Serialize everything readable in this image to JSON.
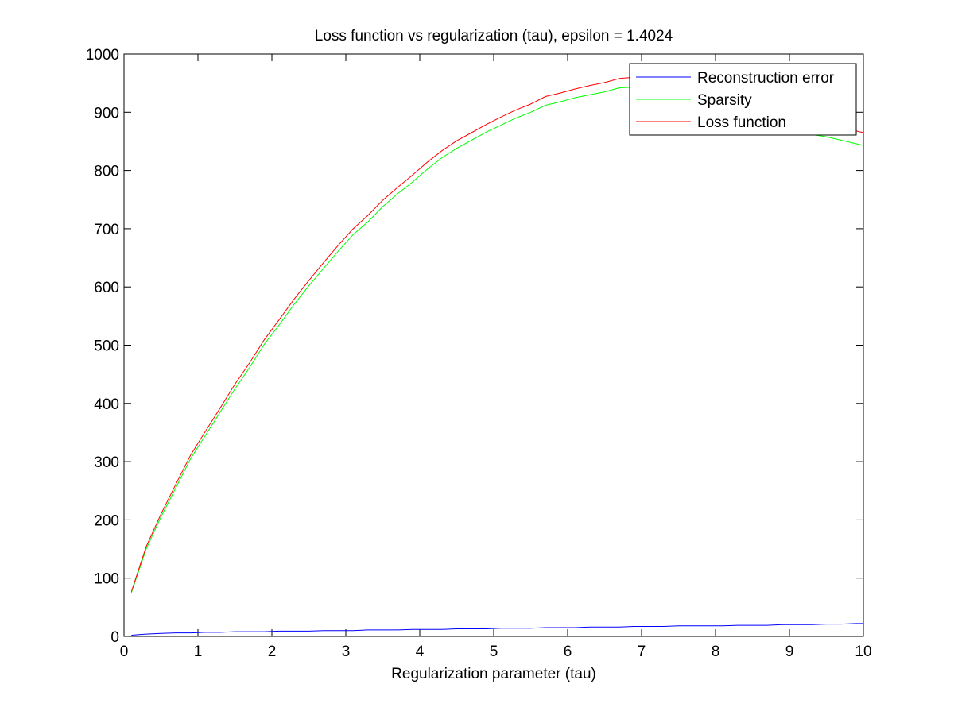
{
  "chart_data": {
    "type": "line",
    "title": "Loss function vs regularization (tau), epsilon = 1.4024",
    "xlabel": "Regularization parameter (tau)",
    "ylabel": "",
    "xlim": [
      0,
      10
    ],
    "ylim": [
      0,
      1000
    ],
    "xticks": [
      0,
      1,
      2,
      3,
      4,
      5,
      6,
      7,
      8,
      9,
      10
    ],
    "yticks": [
      0,
      100,
      200,
      300,
      400,
      500,
      600,
      700,
      800,
      900,
      1000
    ],
    "xtick_labels": [
      "0",
      "1",
      "2",
      "3",
      "4",
      "5",
      "6",
      "7",
      "8",
      "9",
      "10"
    ],
    "ytick_labels": [
      "0",
      "100",
      "200",
      "300",
      "400",
      "500",
      "600",
      "700",
      "800",
      "900",
      "1000"
    ],
    "grid": false,
    "legend_position": "top-right",
    "x": [
      0.1,
      0.3,
      0.5,
      0.7,
      0.9,
      1.1,
      1.3,
      1.5,
      1.7,
      1.9,
      2.1,
      2.3,
      2.5,
      2.7,
      2.9,
      3.1,
      3.3,
      3.5,
      3.7,
      3.9,
      4.1,
      4.3,
      4.5,
      4.7,
      4.9,
      5.1,
      5.3,
      5.5,
      5.7,
      5.9,
      6.1,
      6.3,
      6.5,
      6.7,
      6.9,
      7.1,
      7.3,
      7.5,
      7.7,
      7.9,
      8.1,
      8.3,
      8.5,
      8.7,
      8.9,
      9.1,
      9.3,
      9.5,
      9.7,
      9.9,
      10.0
    ],
    "series": [
      {
        "name": "Reconstruction error",
        "color": "#0000ff",
        "values": [
          2,
          4,
          5,
          6,
          6,
          7,
          7,
          8,
          8,
          8,
          9,
          9,
          9,
          10,
          10,
          10,
          11,
          11,
          11,
          12,
          12,
          12,
          13,
          13,
          13,
          14,
          14,
          14,
          15,
          15,
          15,
          16,
          16,
          16,
          17,
          17,
          17,
          18,
          18,
          18,
          18,
          19,
          19,
          19,
          20,
          20,
          20,
          21,
          21,
          22,
          22
        ]
      },
      {
        "name": "Sparsity",
        "color": "#00ff00",
        "values": [
          75,
          150,
          205,
          255,
          305,
          345,
          385,
          425,
          462,
          502,
          535,
          570,
          602,
          632,
          662,
          690,
          712,
          738,
          760,
          780,
          802,
          822,
          838,
          852,
          866,
          878,
          890,
          900,
          912,
          918,
          925,
          930,
          935,
          942,
          943,
          940,
          935,
          928,
          920,
          912,
          905,
          898,
          890,
          882,
          875,
          868,
          862,
          858,
          852,
          846,
          843
        ]
      },
      {
        "name": "Loss function",
        "color": "#ff0000",
        "values": [
          77,
          154,
          210,
          261,
          311,
          352,
          392,
          433,
          470,
          510,
          544,
          579,
          611,
          642,
          672,
          700,
          723,
          749,
          771,
          792,
          814,
          834,
          851,
          865,
          879,
          892,
          904,
          914,
          927,
          933,
          940,
          946,
          951,
          958,
          960,
          957,
          952,
          946,
          938,
          930,
          923,
          917,
          909,
          901,
          895,
          888,
          882,
          879,
          873,
          868,
          865
        ]
      }
    ]
  }
}
